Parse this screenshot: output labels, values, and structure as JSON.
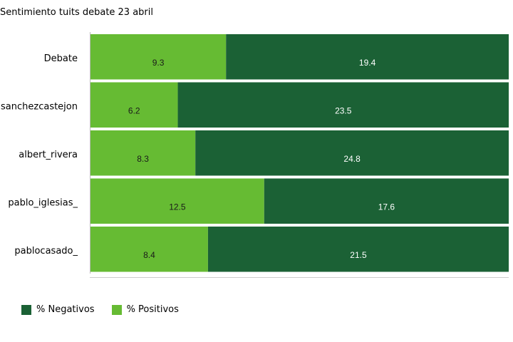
{
  "chart_data": {
    "type": "bar",
    "orientation": "horizontal",
    "stacked": true,
    "percent_stacked": true,
    "title": "Sentimiento tuits debate 23 abril",
    "xlabel": "",
    "ylabel": "",
    "categories": [
      "Debate",
      "sanchezcastejon",
      "albert_rivera",
      "pablo_iglesias_",
      "pablocasado_"
    ],
    "series": [
      {
        "name": "% Positivos",
        "color": "#66bb33",
        "label_color": "#1a1a1a",
        "values": [
          9.3,
          6.2,
          8.3,
          12.5,
          8.4
        ]
      },
      {
        "name": "% Negativos",
        "color": "#1b6135",
        "label_color": "#ffffff",
        "values": [
          19.4,
          23.5,
          24.8,
          17.6,
          21.5
        ]
      }
    ],
    "legend": {
      "position": "bottom-left",
      "entries": [
        "% Negativos",
        "% Positivos"
      ]
    },
    "grid": false
  }
}
